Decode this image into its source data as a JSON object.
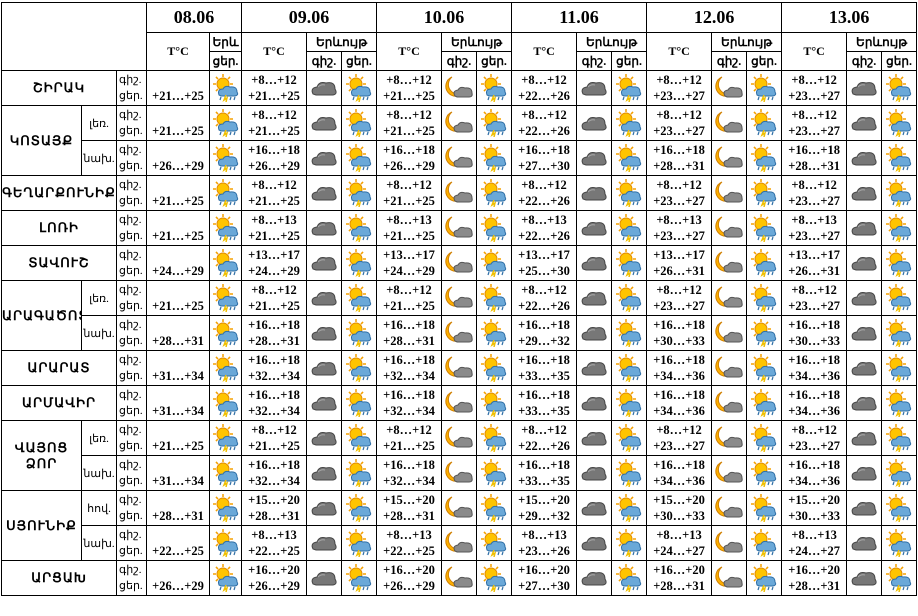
{
  "header": {
    "dates": [
      "08.06",
      "09.06",
      "10.06",
      "11.06",
      "12.06",
      "13.06"
    ],
    "temp_label": "T°C",
    "phenomenon_label": "Երևույթ",
    "first_phenomenon_label": "Երև",
    "night_label": "գիշ.",
    "day_label": "ցեր."
  },
  "regions": [
    {
      "name": "ՇԻՐԱԿ",
      "parts": [
        {
          "day_0806": "+21…+25",
          "temps": [
            [
              "+8…+12",
              "+21…+25"
            ],
            [
              "+8…+12",
              "+21…+25"
            ],
            [
              "+8…+12",
              "+22…+26"
            ],
            [
              "+8…+12",
              "+23…+27"
            ],
            [
              "+8…+12",
              "+23…+27"
            ]
          ]
        }
      ]
    },
    {
      "name": "ԿՈՏԱՅՔ",
      "parts": [
        {
          "sub": "լեռ.",
          "day_0806": "+21…+25",
          "temps": [
            [
              "+8…+12",
              "+21…+25"
            ],
            [
              "+8…+12",
              "+21…+25"
            ],
            [
              "+8…+12",
              "+22…+26"
            ],
            [
              "+8…+12",
              "+23…+27"
            ],
            [
              "+8…+12",
              "+23…+27"
            ]
          ]
        },
        {
          "sub": "նախ.",
          "day_0806": "+26…+29",
          "temps": [
            [
              "+16…+18",
              "+26…+29"
            ],
            [
              "+16…+18",
              "+26…+29"
            ],
            [
              "+16…+18",
              "+27…+30"
            ],
            [
              "+16…+18",
              "+28…+31"
            ],
            [
              "+16…+18",
              "+28…+31"
            ]
          ]
        }
      ]
    },
    {
      "name": "ԳԵՂԱՐՔՈՒՆԻՔ",
      "parts": [
        {
          "day_0806": "+21…+25",
          "temps": [
            [
              "+8…+12",
              "+21…+25"
            ],
            [
              "+8…+12",
              "+21…+25"
            ],
            [
              "+8…+12",
              "+22…+26"
            ],
            [
              "+8…+12",
              "+23…+27"
            ],
            [
              "+8…+12",
              "+23…+27"
            ]
          ]
        }
      ]
    },
    {
      "name": "ԼՈՌԻ",
      "parts": [
        {
          "day_0806": "+21…+25",
          "temps": [
            [
              "+8…+13",
              "+21…+25"
            ],
            [
              "+8…+13",
              "+21…+25"
            ],
            [
              "+8…+13",
              "+22…+26"
            ],
            [
              "+8…+13",
              "+23…+27"
            ],
            [
              "+8…+13",
              "+23…+27"
            ]
          ]
        }
      ]
    },
    {
      "name": "ՏԱՎՈՒՇ",
      "parts": [
        {
          "day_0806": "+24…+29",
          "temps": [
            [
              "+13…+17",
              "+24…+29"
            ],
            [
              "+13…+17",
              "+24…+29"
            ],
            [
              "+13…+17",
              "+25…+30"
            ],
            [
              "+13…+17",
              "+26…+31"
            ],
            [
              "+13…+17",
              "+26…+31"
            ]
          ]
        }
      ]
    },
    {
      "name": "ԱՐԱԳԱԾՈՏՆ",
      "parts": [
        {
          "sub": "լեռ.",
          "day_0806": "+21…+25",
          "temps": [
            [
              "+8…+12",
              "+21…+25"
            ],
            [
              "+8…+12",
              "+21…+25"
            ],
            [
              "+8…+12",
              "+22…+26"
            ],
            [
              "+8…+12",
              "+23…+27"
            ],
            [
              "+8…+12",
              "+23…+27"
            ]
          ]
        },
        {
          "sub": "նախ.",
          "day_0806": "+28…+31",
          "temps": [
            [
              "+16…+18",
              "+28…+31"
            ],
            [
              "+16…+18",
              "+28…+31"
            ],
            [
              "+16…+18",
              "+29…+32"
            ],
            [
              "+16…+18",
              "+30…+33"
            ],
            [
              "+16…+18",
              "+30…+33"
            ]
          ]
        }
      ]
    },
    {
      "name": "ԱՐԱՐԱՏ",
      "parts": [
        {
          "day_0806": "+31…+34",
          "temps": [
            [
              "+16…+18",
              "+32…+34"
            ],
            [
              "+16…+18",
              "+32…+34"
            ],
            [
              "+16…+18",
              "+33…+35"
            ],
            [
              "+16…+18",
              "+34…+36"
            ],
            [
              "+16…+18",
              "+34…+36"
            ]
          ]
        }
      ]
    },
    {
      "name": "ԱՐՄԱՎԻՐ",
      "parts": [
        {
          "day_0806": "+31…+34",
          "temps": [
            [
              "+16…+18",
              "+32…+34"
            ],
            [
              "+16…+18",
              "+32…+34"
            ],
            [
              "+16…+18",
              "+33…+35"
            ],
            [
              "+16…+18",
              "+34…+36"
            ],
            [
              "+16…+18",
              "+34…+36"
            ]
          ]
        }
      ]
    },
    {
      "name": "ՎԱՅՈՑ ՁՈՐ",
      "parts": [
        {
          "sub": "լեռ.",
          "day_0806": "+21…+25",
          "temps": [
            [
              "+8…+12",
              "+21…+25"
            ],
            [
              "+8…+12",
              "+21…+25"
            ],
            [
              "+8…+12",
              "+22…+26"
            ],
            [
              "+8…+12",
              "+23…+27"
            ],
            [
              "+8…+12",
              "+23…+27"
            ]
          ]
        },
        {
          "sub": "նախ.",
          "day_0806": "+31…+34",
          "temps": [
            [
              "+16…+18",
              "+32…+34"
            ],
            [
              "+16…+18",
              "+32…+34"
            ],
            [
              "+16…+18",
              "+33…+35"
            ],
            [
              "+16…+18",
              "+34…+36"
            ],
            [
              "+16…+18",
              "+34…+36"
            ]
          ]
        }
      ]
    },
    {
      "name": "ՍՅՈՒՆԻՔ",
      "parts": [
        {
          "sub": "հով.",
          "day_0806": "+28…+31",
          "temps": [
            [
              "+15…+20",
              "+28…+31"
            ],
            [
              "+15…+20",
              "+28…+31"
            ],
            [
              "+15…+20",
              "+29…+32"
            ],
            [
              "+15…+20",
              "+30…+33"
            ],
            [
              "+15…+20",
              "+30…+33"
            ]
          ]
        },
        {
          "sub": "նախ.",
          "day_0806": "+22…+25",
          "temps": [
            [
              "+8…+13",
              "+22…+25"
            ],
            [
              "+8…+13",
              "+22…+25"
            ],
            [
              "+8…+13",
              "+23…+26"
            ],
            [
              "+8…+13",
              "+24…+27"
            ],
            [
              "+8…+13",
              "+24…+27"
            ]
          ]
        }
      ]
    },
    {
      "name": "ԱՐՑԱԽ",
      "parts": [
        {
          "day_0806": "+26…+29",
          "temps": [
            [
              "+16…+20",
              "+26…+29"
            ],
            [
              "+16…+20",
              "+26…+29"
            ],
            [
              "+16…+20",
              "+27…+30"
            ],
            [
              "+16…+20",
              "+28…+31"
            ],
            [
              "+16…+20",
              "+28…+31"
            ]
          ]
        }
      ]
    }
  ]
}
